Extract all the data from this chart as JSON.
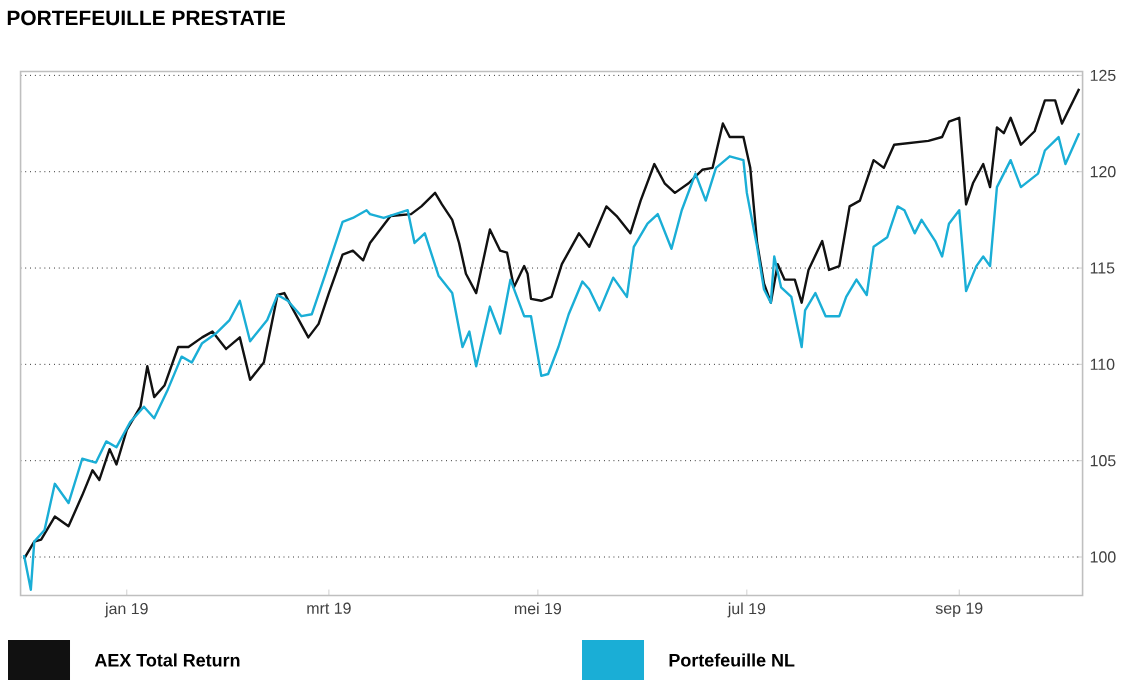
{
  "chart_data": {
    "type": "line",
    "title": "PORTEFEUILLE PRESTATIE",
    "xlim": [
      "2018-12-01",
      "2019-10-07"
    ],
    "xticks": [
      {
        "value": "2019-01-01",
        "label": "jan 19"
      },
      {
        "value": "2019-03-01",
        "label": "mrt 19"
      },
      {
        "value": "2019-05-01",
        "label": "mei 19"
      },
      {
        "value": "2019-07-01",
        "label": "jul 19"
      },
      {
        "value": "2019-09-01",
        "label": "sep 19"
      }
    ],
    "ylim": [
      98,
      125.2
    ],
    "yticks": [
      100,
      105,
      110,
      115,
      120,
      125
    ],
    "grid": "y",
    "legend": "bottom",
    "line_style": "solid",
    "marker": "none",
    "series": [
      {
        "name": "AEX Total Return",
        "color": "#111111",
        "x": [
          "2018-12-02",
          "2018-12-05",
          "2018-12-07",
          "2018-12-11",
          "2018-12-15",
          "2018-12-19",
          "2018-12-22",
          "2018-12-24",
          "2018-12-27",
          "2018-12-29",
          "2019-01-01",
          "2019-01-05",
          "2019-01-07",
          "2019-01-09",
          "2019-01-12",
          "2019-01-16",
          "2019-01-19",
          "2019-01-23",
          "2019-01-26",
          "2019-01-30",
          "2019-02-03",
          "2019-02-06",
          "2019-02-10",
          "2019-02-14",
          "2019-02-16",
          "2019-02-19",
          "2019-02-23",
          "2019-02-26",
          "2019-03-01",
          "2019-03-05",
          "2019-03-08",
          "2019-03-11",
          "2019-03-13",
          "2019-03-19",
          "2019-03-25",
          "2019-03-28",
          "2019-04-01",
          "2019-04-03",
          "2019-04-06",
          "2019-04-08",
          "2019-04-10",
          "2019-04-13",
          "2019-04-17",
          "2019-04-20",
          "2019-04-22",
          "2019-04-24",
          "2019-04-27",
          "2019-04-28",
          "2019-04-29",
          "2019-05-02",
          "2019-05-05",
          "2019-05-08",
          "2019-05-13",
          "2019-05-16",
          "2019-05-21",
          "2019-05-24",
          "2019-05-28",
          "2019-05-31",
          "2019-06-04",
          "2019-06-07",
          "2019-06-10",
          "2019-06-14",
          "2019-06-18",
          "2019-06-21",
          "2019-06-24",
          "2019-06-26",
          "2019-06-30",
          "2019-07-02",
          "2019-07-04",
          "2019-07-06",
          "2019-07-08",
          "2019-07-10",
          "2019-07-12",
          "2019-07-15",
          "2019-07-17",
          "2019-07-19",
          "2019-07-23",
          "2019-07-25",
          "2019-07-28",
          "2019-07-31",
          "2019-08-03",
          "2019-08-07",
          "2019-08-10",
          "2019-08-13",
          "2019-08-23",
          "2019-08-27",
          "2019-08-29",
          "2019-09-01",
          "2019-09-03",
          "2019-09-05",
          "2019-09-08",
          "2019-09-10",
          "2019-09-12",
          "2019-09-14",
          "2019-09-16",
          "2019-09-19",
          "2019-09-23",
          "2019-09-26",
          "2019-09-29",
          "2019-10-01",
          "2019-10-06"
        ],
        "values": [
          99.9,
          100.8,
          100.9,
          102.1,
          101.6,
          103.2,
          104.5,
          104.0,
          105.6,
          104.8,
          106.6,
          107.8,
          109.9,
          108.3,
          108.9,
          110.9,
          110.9,
          111.4,
          111.7,
          110.8,
          111.4,
          109.2,
          110.1,
          113.6,
          113.7,
          112.7,
          111.4,
          112.1,
          113.7,
          115.7,
          115.9,
          115.4,
          116.3,
          117.7,
          117.8,
          118.2,
          118.9,
          118.3,
          117.5,
          116.3,
          114.7,
          113.7,
          117.0,
          115.9,
          115.8,
          114.0,
          115.1,
          114.7,
          113.4,
          113.3,
          113.5,
          115.2,
          116.8,
          116.1,
          118.2,
          117.7,
          116.8,
          118.5,
          120.4,
          119.4,
          118.9,
          119.4,
          120.1,
          120.2,
          122.5,
          121.8,
          121.8,
          120.2,
          116.3,
          114.2,
          113.2,
          115.2,
          114.4,
          114.4,
          113.2,
          114.9,
          116.4,
          114.9,
          115.1,
          118.2,
          118.5,
          120.6,
          120.2,
          121.4,
          121.6,
          121.8,
          122.6,
          122.8,
          118.3,
          119.4,
          120.4,
          119.2,
          122.3,
          122.0,
          122.8,
          121.4,
          122.1,
          123.7,
          123.7,
          122.5,
          124.3
        ]
      },
      {
        "name": "Portefeuille NL",
        "color": "#1aaed6",
        "x": [
          "2018-12-02",
          "2018-12-04",
          "2018-12-05",
          "2018-12-08",
          "2018-12-11",
          "2018-12-15",
          "2018-12-19",
          "2018-12-23",
          "2018-12-26",
          "2018-12-29",
          "2019-01-02",
          "2019-01-06",
          "2019-01-09",
          "2019-01-13",
          "2019-01-17",
          "2019-01-20",
          "2019-01-23",
          "2019-01-27",
          "2019-01-31",
          "2019-02-03",
          "2019-02-06",
          "2019-02-11",
          "2019-02-14",
          "2019-02-17",
          "2019-02-21",
          "2019-02-24",
          "2019-02-28",
          "2019-03-05",
          "2019-03-08",
          "2019-03-12",
          "2019-03-13",
          "2019-03-17",
          "2019-03-24",
          "2019-03-26",
          "2019-03-29",
          "2019-04-02",
          "2019-04-06",
          "2019-04-09",
          "2019-04-11",
          "2019-04-13",
          "2019-04-17",
          "2019-04-20",
          "2019-04-23",
          "2019-04-27",
          "2019-04-29",
          "2019-05-02",
          "2019-05-04",
          "2019-05-07",
          "2019-05-10",
          "2019-05-14",
          "2019-05-16",
          "2019-05-19",
          "2019-05-23",
          "2019-05-27",
          "2019-05-29",
          "2019-06-02",
          "2019-06-05",
          "2019-06-09",
          "2019-06-12",
          "2019-06-16",
          "2019-06-19",
          "2019-06-22",
          "2019-06-26",
          "2019-06-30",
          "2019-07-01",
          "2019-07-04",
          "2019-07-06",
          "2019-07-08",
          "2019-07-09",
          "2019-07-11",
          "2019-07-14",
          "2019-07-17",
          "2019-07-18",
          "2019-07-21",
          "2019-07-24",
          "2019-07-28",
          "2019-07-30",
          "2019-08-02",
          "2019-08-05",
          "2019-08-07",
          "2019-08-11",
          "2019-08-14",
          "2019-08-16",
          "2019-08-19",
          "2019-08-21",
          "2019-08-25",
          "2019-08-27",
          "2019-08-29",
          "2019-09-01",
          "2019-09-03",
          "2019-09-06",
          "2019-09-08",
          "2019-09-10",
          "2019-09-12",
          "2019-09-16",
          "2019-09-19",
          "2019-09-24",
          "2019-09-26",
          "2019-09-30",
          "2019-10-02",
          "2019-10-06"
        ],
        "values": [
          100.1,
          98.3,
          100.8,
          101.4,
          103.8,
          102.8,
          105.1,
          104.9,
          106.0,
          105.7,
          107.0,
          107.8,
          107.2,
          108.7,
          110.4,
          110.1,
          111.1,
          111.6,
          112.3,
          113.3,
          111.2,
          112.3,
          113.6,
          113.3,
          112.5,
          112.6,
          114.7,
          117.4,
          117.6,
          118.0,
          117.8,
          117.6,
          118.0,
          116.3,
          116.8,
          114.6,
          113.7,
          110.9,
          111.7,
          109.9,
          113.0,
          111.6,
          114.4,
          112.5,
          112.5,
          109.4,
          109.5,
          110.9,
          112.6,
          114.3,
          113.9,
          112.8,
          114.5,
          113.5,
          116.1,
          117.3,
          117.8,
          116.0,
          118.0,
          119.9,
          118.5,
          120.2,
          120.8,
          120.6,
          118.9,
          116.1,
          113.9,
          113.2,
          115.6,
          114.0,
          113.5,
          110.9,
          112.8,
          113.7,
          112.5,
          112.5,
          113.5,
          114.4,
          113.6,
          116.1,
          116.6,
          118.2,
          118.0,
          116.8,
          117.5,
          116.4,
          115.6,
          117.3,
          118.0,
          113.8,
          115.1,
          115.6,
          115.1,
          119.2,
          120.6,
          119.2,
          119.9,
          121.1,
          121.8,
          120.4,
          122.0
        ]
      }
    ]
  }
}
